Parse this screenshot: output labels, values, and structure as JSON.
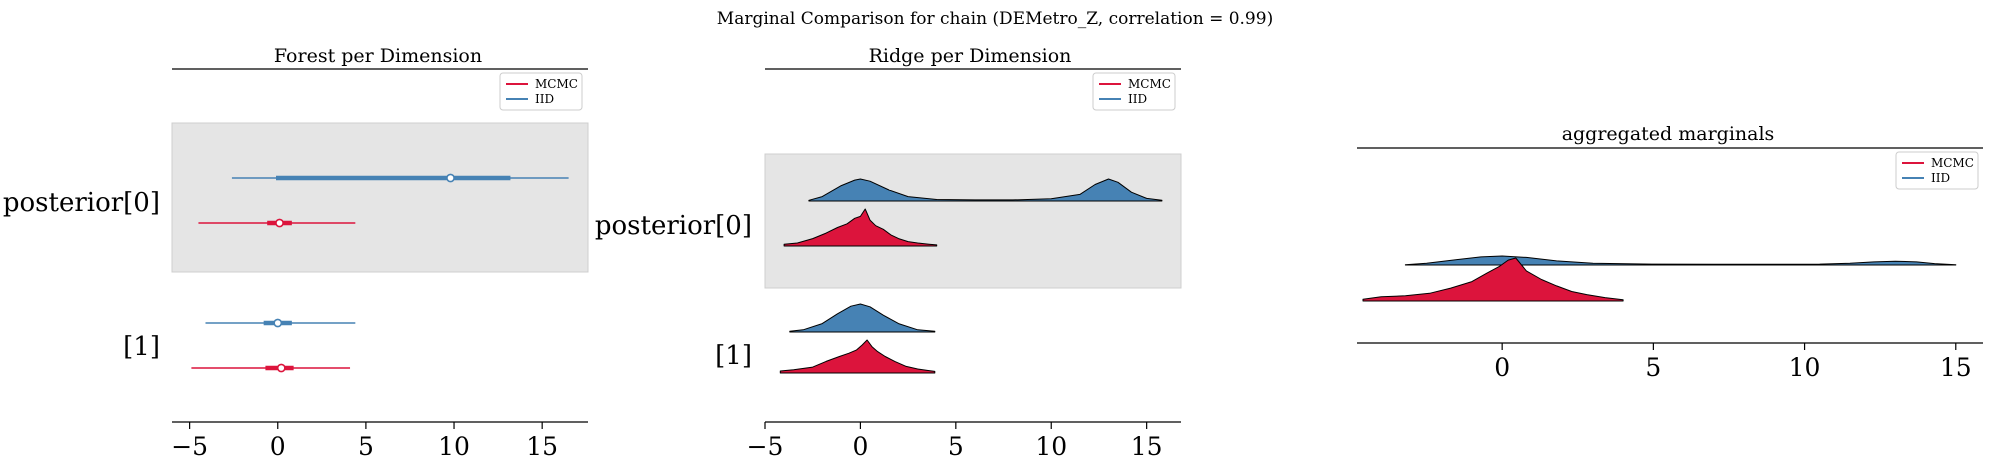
{
  "figure": {
    "suptitle": "Marginal Comparison for chain (DEMetro_Z, correlation = 0.99)"
  },
  "colors": {
    "mcmc": "#dc143c",
    "iid": "#4682b4",
    "band": "#e5e5e5"
  },
  "chart_data": [
    {
      "type": "forest",
      "title": "Forest per Dimension",
      "xlim": [
        -6,
        17.6
      ],
      "xticks": [
        -5,
        0,
        5,
        10,
        15
      ],
      "legend": {
        "location": "upper-right",
        "entries": [
          "MCMC",
          "IID"
        ]
      },
      "rows": [
        {
          "label": "posterior[0]",
          "shaded": true,
          "series": [
            {
              "name": "IID",
              "hdi94": [
                -2.6,
                16.5
              ],
              "iqr": [
                -0.1,
                13.2
              ],
              "median": 9.8
            },
            {
              "name": "MCMC",
              "hdi94": [
                -4.5,
                4.4
              ],
              "iqr": [
                -0.6,
                0.8
              ],
              "median": 0.1
            }
          ]
        },
        {
          "label": "[1]",
          "shaded": false,
          "series": [
            {
              "name": "IID",
              "hdi94": [
                -4.1,
                4.4
              ],
              "iqr": [
                -0.8,
                0.8
              ],
              "median": 0.0
            },
            {
              "name": "MCMC",
              "hdi94": [
                -4.9,
                4.1
              ],
              "iqr": [
                -0.7,
                0.9
              ],
              "median": 0.2
            }
          ]
        }
      ]
    },
    {
      "type": "ridge",
      "title": "Ridge per Dimension",
      "xlim": [
        -5,
        16.8
      ],
      "xticks": [
        -5,
        0,
        5,
        10,
        15
      ],
      "legend": {
        "location": "upper-right",
        "entries": [
          "MCMC",
          "IID"
        ]
      },
      "rows": [
        {
          "label": "posterior[0]",
          "shaded": true,
          "series": [
            {
              "name": "IID",
              "x": [
                -2.7,
                -2,
                -1,
                -0.3,
                0,
                0.5,
                1.5,
                2.5,
                4,
                6,
                8,
                10,
                11.5,
                12.3,
                13,
                13.5,
                14.2,
                15,
                15.8
              ],
              "y": [
                0.03,
                0.2,
                0.7,
                0.95,
                1,
                0.9,
                0.5,
                0.2,
                0.07,
                0.05,
                0.05,
                0.1,
                0.3,
                0.75,
                1,
                0.85,
                0.4,
                0.12,
                0.03
              ]
            },
            {
              "name": "MCMC",
              "x": [
                -4,
                -3.3,
                -2.5,
                -1.8,
                -1.2,
                -0.7,
                -0.3,
                0,
                0.25,
                0.5,
                0.8,
                1.2,
                1.6,
                2,
                2.5,
                3,
                3.6,
                4
              ],
              "y": [
                0.05,
                0.08,
                0.2,
                0.35,
                0.5,
                0.6,
                0.75,
                0.8,
                1,
                0.7,
                0.55,
                0.45,
                0.3,
                0.2,
                0.12,
                0.08,
                0.05,
                0.03
              ]
            }
          ]
        },
        {
          "label": "[1]",
          "shaded": false,
          "series": [
            {
              "name": "IID",
              "x": [
                -3.7,
                -3,
                -2,
                -1.2,
                -0.5,
                0,
                0.5,
                1.2,
                2,
                3,
                3.9
              ],
              "y": [
                0.03,
                0.08,
                0.3,
                0.65,
                0.92,
                1,
                0.9,
                0.6,
                0.3,
                0.08,
                0.03
              ]
            },
            {
              "name": "MCMC",
              "x": [
                -4.2,
                -3.5,
                -2.5,
                -1.8,
                -1.1,
                -0.6,
                -0.2,
                0.1,
                0.35,
                0.6,
                0.9,
                1.3,
                1.8,
                2.4,
                3,
                3.5,
                3.9
              ],
              "y": [
                0.06,
                0.1,
                0.18,
                0.35,
                0.5,
                0.6,
                0.7,
                0.85,
                1,
                0.8,
                0.65,
                0.5,
                0.35,
                0.2,
                0.12,
                0.08,
                0.05
              ]
            }
          ]
        }
      ]
    },
    {
      "type": "ridge",
      "title": "aggregated marginals",
      "xlim": [
        -4.8,
        15.9
      ],
      "xticks": [
        0,
        5,
        10,
        15
      ],
      "legend": {
        "location": "upper-right",
        "entries": [
          "MCMC",
          "IID"
        ]
      },
      "rows": [
        {
          "label": "",
          "shaded": false,
          "series": [
            {
              "name": "IID",
              "x": [
                -3.2,
                -2.5,
                -1.5,
                -0.7,
                0,
                0.8,
                1.8,
                3,
                5,
                7,
                9,
                10.5,
                11.5,
                12.3,
                13,
                13.7,
                14.3,
                15
              ],
              "y": [
                0.03,
                0.2,
                0.6,
                0.9,
                1,
                0.85,
                0.45,
                0.2,
                0.1,
                0.08,
                0.08,
                0.1,
                0.2,
                0.35,
                0.42,
                0.35,
                0.15,
                0.03
              ]
            },
            {
              "name": "MCMC",
              "x": [
                -4.6,
                -4,
                -3.2,
                -2.4,
                -1.7,
                -1,
                -0.5,
                -0.1,
                0.2,
                0.45,
                0.8,
                1.3,
                1.8,
                2.3,
                2.8,
                3.4,
                4
              ],
              "y": [
                0.04,
                0.1,
                0.12,
                0.18,
                0.3,
                0.45,
                0.65,
                0.8,
                0.95,
                1,
                0.7,
                0.5,
                0.35,
                0.22,
                0.15,
                0.08,
                0.03
              ]
            }
          ]
        }
      ]
    }
  ]
}
